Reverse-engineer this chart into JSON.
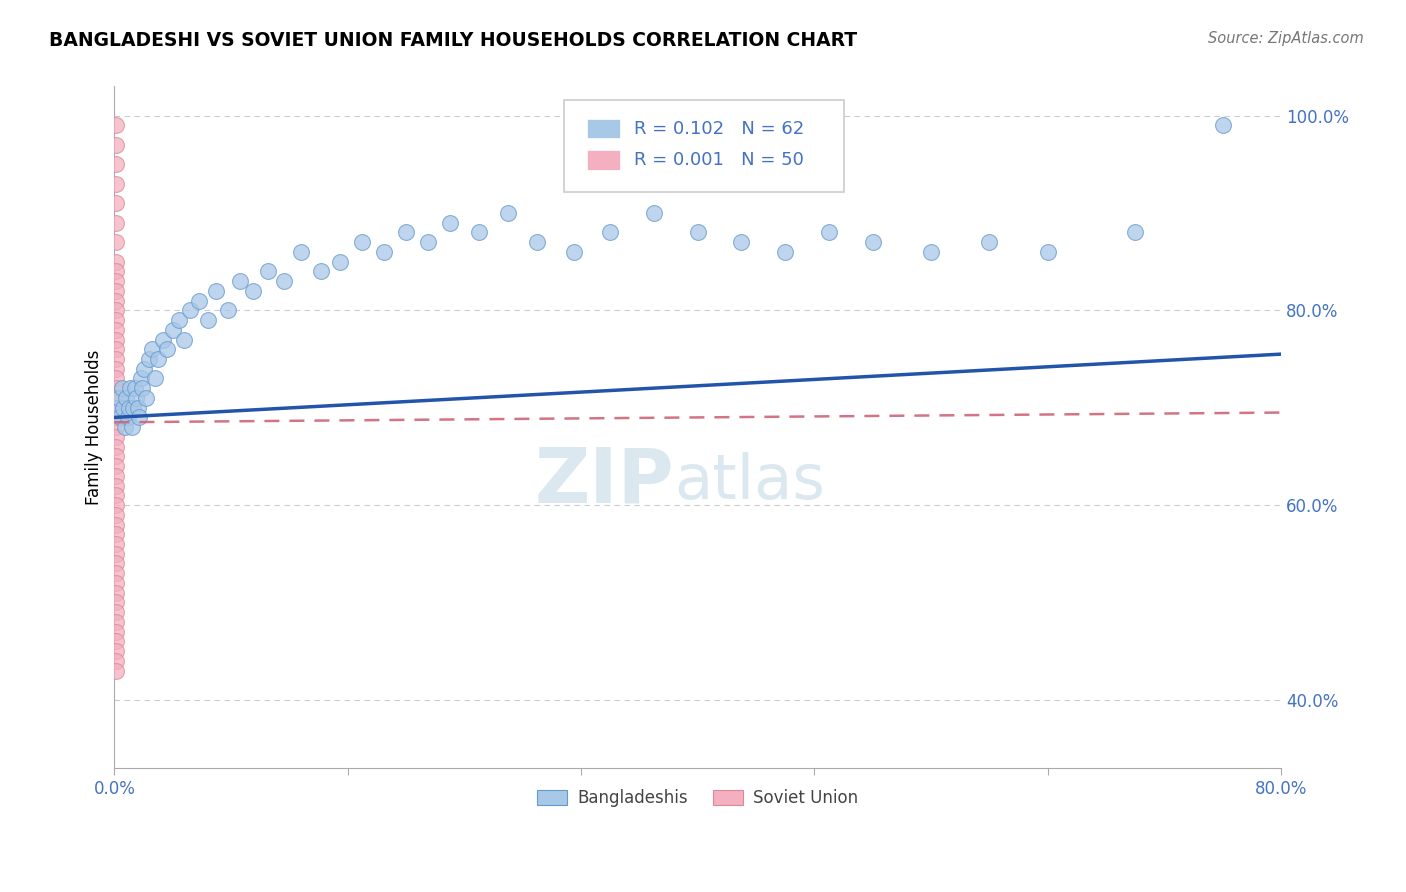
{
  "title": "BANGLADESHI VS SOVIET UNION FAMILY HOUSEHOLDS CORRELATION CHART",
  "source": "Source: ZipAtlas.com",
  "ylabel": "Family Households",
  "xlim": [
    0.0,
    0.8
  ],
  "ylim": [
    0.33,
    1.03
  ],
  "yticks": [
    0.4,
    0.6,
    0.8,
    1.0
  ],
  "ytick_labels": [
    "40.0%",
    "60.0%",
    "80.0%",
    "100.0%"
  ],
  "xticks": [
    0.0,
    0.16,
    0.32,
    0.48,
    0.64,
    0.8
  ],
  "xtick_labels": [
    "0.0%",
    "",
    "",
    "",
    "",
    "80.0%"
  ],
  "blue_color": "#a8c8e8",
  "blue_edge_color": "#6699cc",
  "pink_color": "#f4afc0",
  "pink_edge_color": "#dd8899",
  "blue_line_color": "#2255aa",
  "pink_line_color": "#cc6677",
  "r_blue": 0.102,
  "n_blue": 62,
  "r_pink": 0.001,
  "n_pink": 50,
  "legend_label_blue": "Bangladeshis",
  "legend_label_pink": "Soviet Union",
  "watermark_zip": "ZIP",
  "watermark_atlas": "atlas",
  "blue_x": [
    0.002,
    0.003,
    0.004,
    0.005,
    0.006,
    0.007,
    0.008,
    0.009,
    0.01,
    0.011,
    0.012,
    0.013,
    0.014,
    0.015,
    0.016,
    0.017,
    0.018,
    0.019,
    0.02,
    0.022,
    0.024,
    0.026,
    0.028,
    0.03,
    0.033,
    0.036,
    0.04,
    0.044,
    0.048,
    0.052,
    0.058,
    0.064,
    0.07,
    0.078,
    0.086,
    0.095,
    0.105,
    0.116,
    0.128,
    0.142,
    0.155,
    0.17,
    0.185,
    0.2,
    0.215,
    0.23,
    0.25,
    0.27,
    0.29,
    0.315,
    0.34,
    0.37,
    0.4,
    0.43,
    0.46,
    0.49,
    0.52,
    0.56,
    0.6,
    0.64,
    0.7,
    0.76
  ],
  "blue_y": [
    0.7,
    0.71,
    0.69,
    0.72,
    0.7,
    0.68,
    0.71,
    0.69,
    0.7,
    0.72,
    0.68,
    0.7,
    0.72,
    0.71,
    0.7,
    0.69,
    0.73,
    0.72,
    0.74,
    0.71,
    0.75,
    0.76,
    0.73,
    0.75,
    0.77,
    0.76,
    0.78,
    0.79,
    0.77,
    0.8,
    0.81,
    0.79,
    0.82,
    0.8,
    0.83,
    0.82,
    0.84,
    0.83,
    0.86,
    0.84,
    0.85,
    0.87,
    0.86,
    0.88,
    0.87,
    0.89,
    0.88,
    0.9,
    0.87,
    0.86,
    0.88,
    0.9,
    0.88,
    0.87,
    0.86,
    0.88,
    0.87,
    0.86,
    0.87,
    0.86,
    0.88,
    0.99
  ],
  "pink_x": [
    0.001,
    0.001,
    0.001,
    0.001,
    0.001,
    0.001,
    0.001,
    0.001,
    0.001,
    0.001,
    0.001,
    0.001,
    0.001,
    0.001,
    0.001,
    0.001,
    0.001,
    0.001,
    0.001,
    0.001,
    0.001,
    0.001,
    0.001,
    0.001,
    0.001,
    0.001,
    0.001,
    0.001,
    0.001,
    0.001,
    0.001,
    0.001,
    0.001,
    0.001,
    0.001,
    0.001,
    0.001,
    0.001,
    0.001,
    0.001,
    0.001,
    0.001,
    0.001,
    0.001,
    0.001,
    0.001,
    0.001,
    0.001,
    0.001,
    0.001
  ],
  "pink_y": [
    0.99,
    0.97,
    0.95,
    0.93,
    0.91,
    0.89,
    0.87,
    0.85,
    0.84,
    0.83,
    0.82,
    0.81,
    0.8,
    0.79,
    0.78,
    0.77,
    0.76,
    0.75,
    0.74,
    0.73,
    0.72,
    0.71,
    0.7,
    0.69,
    0.68,
    0.67,
    0.66,
    0.65,
    0.64,
    0.63,
    0.62,
    0.61,
    0.6,
    0.59,
    0.58,
    0.57,
    0.56,
    0.55,
    0.54,
    0.53,
    0.52,
    0.51,
    0.5,
    0.49,
    0.48,
    0.47,
    0.46,
    0.45,
    0.44,
    0.43
  ],
  "blue_trend_start": 0.69,
  "blue_trend_end": 0.755,
  "pink_trend_start": 0.685,
  "pink_trend_end": 0.695
}
